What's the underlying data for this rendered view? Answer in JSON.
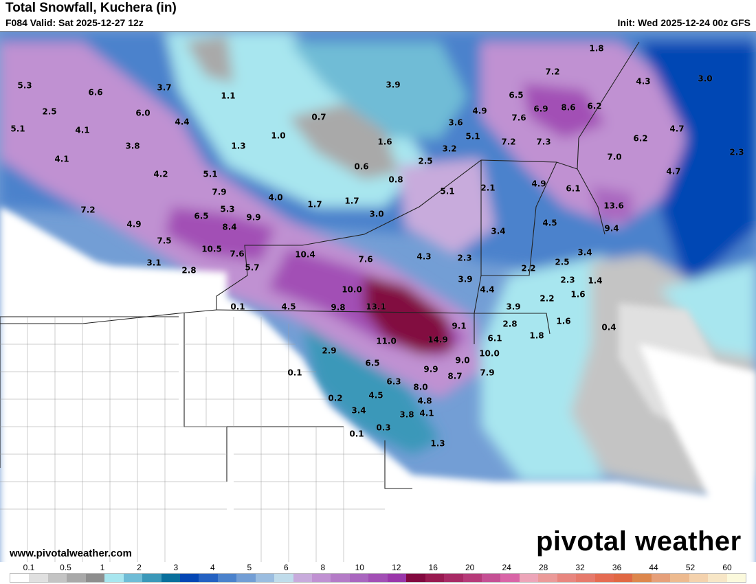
{
  "header": {
    "title": "Total Snowfall, Kuchera (in)",
    "valid": "F084 Valid: Sat 2025-12-27 12z",
    "init": "Init: Wed 2025-12-24 00z GFS"
  },
  "map": {
    "value_labels": [
      "1.8",
      "7.2",
      "4.3",
      "3.0",
      "5.3",
      "6.6",
      "3.7",
      "3.9",
      "6.5",
      "2.5",
      "6.0",
      "1.1",
      "6.9",
      "8.6",
      "6.2",
      "4.9",
      "7.6",
      "0.7",
      "3.6",
      "4.4",
      "5.1",
      "4.1",
      "4.7",
      "1.0",
      "5.1",
      "7.2",
      "7.3",
      "6.2",
      "1.6",
      "3.8",
      "1.3",
      "3.2",
      "2.3",
      "4.1",
      "7.0",
      "2.5",
      "0.6",
      "4.2",
      "5.1",
      "4.7",
      "0.8",
      "2.1",
      "4.9",
      "6.1",
      "5.1",
      "7.9",
      "4.0",
      "1.7",
      "1.7",
      "13.6",
      "7.2",
      "5.3",
      "4.9",
      "6.5",
      "9.9",
      "3.0",
      "4.5",
      "8.4",
      "9.4",
      "3.4",
      "7.5",
      "10.5",
      "7.6",
      "10.4",
      "7.6",
      "4.3",
      "2.3",
      "2.2",
      "2.5",
      "3.4",
      "3.1",
      "2.8",
      "5.7",
      "3.9",
      "2.3",
      "1.4",
      "10.0",
      "4.4",
      "2.2",
      "1.6",
      "0.1",
      "4.5",
      "9.8",
      "13.1",
      "3.9",
      "9.1",
      "2.8",
      "1.6",
      "0.4",
      "11.0",
      "14.9",
      "6.1",
      "1.8",
      "2.9",
      "10.0",
      "9.0",
      "6.5",
      "0.1",
      "9.9",
      "8.7",
      "7.9",
      "6.3",
      "8.0",
      "0.2",
      "4.5",
      "4.8",
      "3.4",
      "3.8",
      "4.1",
      "0.1",
      "0.3",
      "1.3"
    ]
  },
  "footer": {
    "url": "www.pivotalweather.com",
    "logo_text": "pivotal weather"
  },
  "legend": {
    "unit": "in",
    "labels": [
      "0.1",
      "0.5",
      "1",
      "2",
      "3",
      "4",
      "5",
      "6",
      "8",
      "10",
      "12",
      "16",
      "20",
      "24",
      "28",
      "32",
      "36",
      "44",
      "52",
      "60"
    ],
    "colors": [
      "#ffffff",
      "#e0e0e0",
      "#c4c4c4",
      "#a9a9a9",
      "#8e8e8e",
      "#a8e6ef",
      "#6fbcd6",
      "#3b98b9",
      "#096f9c",
      "#0446b4",
      "#2461c2",
      "#4b82cc",
      "#739ed5",
      "#9bbde0",
      "#c0dceb",
      "#c8abdc",
      "#c091d2",
      "#b47bc7",
      "#a966bf",
      "#a24fb5",
      "#9a37aa",
      "#82093f",
      "#981a50",
      "#a82a65",
      "#b63b79",
      "#c55094",
      "#d965a7",
      "#eda5b9",
      "#eb9a99",
      "#e8867f",
      "#e67a6c",
      "#e56b52",
      "#e06844",
      "#dd874d",
      "#e6a07a",
      "#edba8f",
      "#f4d2ad",
      "#f7e6c6",
      "#fbf9dc"
    ]
  }
}
